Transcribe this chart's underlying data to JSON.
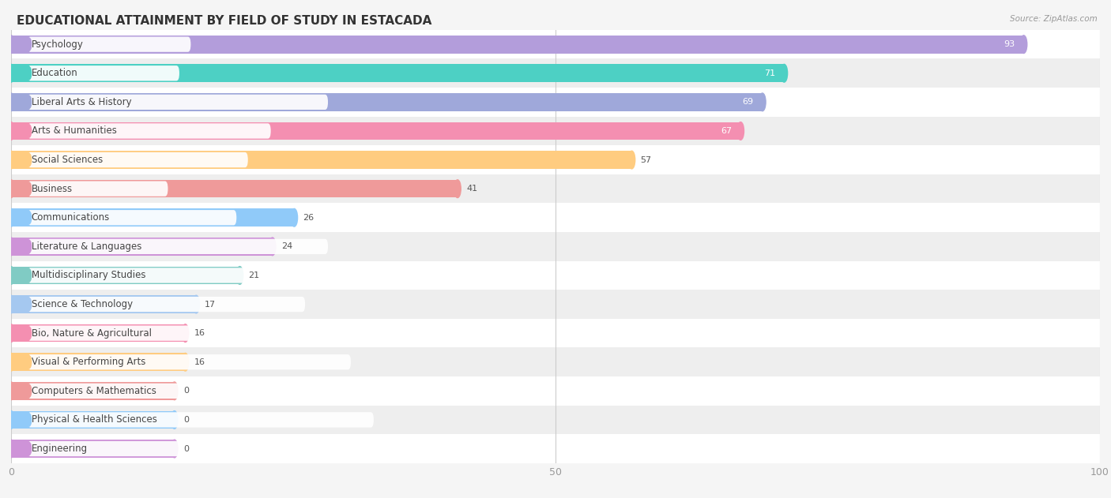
{
  "title": "EDUCATIONAL ATTAINMENT BY FIELD OF STUDY IN ESTACADA",
  "source": "Source: ZipAtlas.com",
  "categories": [
    "Psychology",
    "Education",
    "Liberal Arts & History",
    "Arts & Humanities",
    "Social Sciences",
    "Business",
    "Communications",
    "Literature & Languages",
    "Multidisciplinary Studies",
    "Science & Technology",
    "Bio, Nature & Agricultural",
    "Visual & Performing Arts",
    "Computers & Mathematics",
    "Physical & Health Sciences",
    "Engineering"
  ],
  "values": [
    93,
    71,
    69,
    67,
    57,
    41,
    26,
    24,
    21,
    17,
    16,
    16,
    0,
    0,
    0
  ],
  "colors": [
    "#b39ddb",
    "#4dd0c4",
    "#9fa8da",
    "#f48fb1",
    "#ffcc80",
    "#ef9a9a",
    "#90caf9",
    "#ce93d8",
    "#80cbc4",
    "#a5c8f0",
    "#f48fb1",
    "#ffcc80",
    "#ef9a9a",
    "#90caf9",
    "#ce93d8"
  ],
  "xlim": [
    0,
    100
  ],
  "xticks": [
    0,
    50,
    100
  ],
  "bar_height": 0.62,
  "background_color": "#f5f5f5",
  "row_bg_even": "#ffffff",
  "row_bg_odd": "#eeeeee",
  "title_fontsize": 11,
  "label_fontsize": 8.5,
  "value_fontsize": 8,
  "inside_label_threshold": 67,
  "zero_display_value": 15
}
